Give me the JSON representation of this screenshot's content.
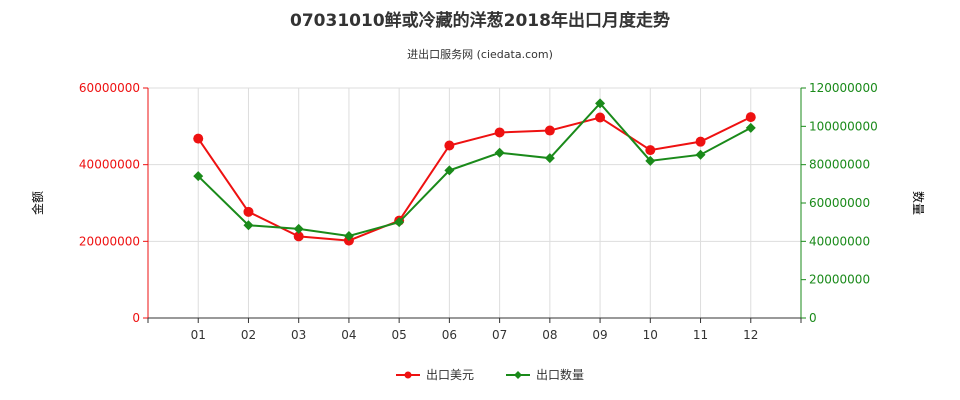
{
  "chart_data": {
    "type": "line",
    "title": "07031010鲜或冷藏的洋葱2018年出口月度走势",
    "subtitle": "进出口服务网 (ciedata.com)",
    "categories": [
      "01",
      "02",
      "03",
      "04",
      "05",
      "06",
      "07",
      "08",
      "09",
      "10",
      "11",
      "12"
    ],
    "series": [
      {
        "name": "出口美元",
        "axis": "left",
        "color": "#ee1111",
        "marker": "circle",
        "values": [
          46800000,
          27700000,
          21300000,
          20200000,
          25400000,
          45000000,
          48400000,
          48900000,
          52300000,
          43800000,
          46000000,
          52400000
        ]
      },
      {
        "name": "出口数量",
        "axis": "right",
        "color": "#1a8a1a",
        "marker": "diamond",
        "values": [
          74000000,
          48400000,
          46500000,
          42800000,
          50000000,
          77000000,
          86200000,
          83400000,
          112000000,
          82000000,
          85200000,
          99200000
        ]
      }
    ],
    "y_left": {
      "label": "金额",
      "min": 0,
      "max": 60000000,
      "ticks": [
        "0",
        "20000000",
        "40000000",
        "60000000"
      ],
      "tick_values": [
        0,
        20000000,
        40000000,
        60000000
      ],
      "color": "#ee1111"
    },
    "y_right": {
      "label": "数量",
      "min": 0,
      "max": 120000000,
      "ticks": [
        "0",
        "20000000",
        "40000000",
        "60000000",
        "80000000",
        "100000000",
        "120000000"
      ],
      "tick_values": [
        0,
        20000000,
        40000000,
        60000000,
        80000000,
        100000000,
        120000000
      ],
      "color": "#1a8a1a"
    },
    "grid": true,
    "legend_position": "bottom-center"
  }
}
